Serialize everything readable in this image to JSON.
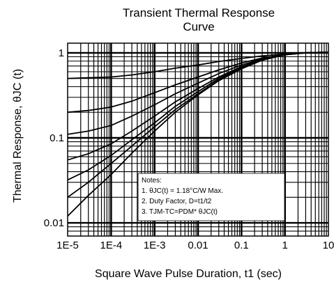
{
  "chart_data": {
    "type": "line",
    "title_line1": "Transient Thermal Response",
    "title_line2": "Curve",
    "ylabel": "Thermal Response, θJC (t)",
    "xlabel": "Square Wave Pulse Duration, t1 (sec)",
    "xscale": "log",
    "yscale": "log",
    "xlim": [
      1e-05,
      10
    ],
    "ylim": [
      0.007,
      1.3
    ],
    "grid": true,
    "x_ticks": [
      {
        "value": 1e-05,
        "label": "1E-5"
      },
      {
        "value": 0.0001,
        "label": "1E-4"
      },
      {
        "value": 0.001,
        "label": "1E-3"
      },
      {
        "value": 0.01,
        "label": "0.01"
      },
      {
        "value": 0.1,
        "label": "0.1"
      },
      {
        "value": 1,
        "label": "1"
      },
      {
        "value": 10,
        "label": "10"
      }
    ],
    "y_ticks": [
      {
        "value": 0.01,
        "label": "0.01"
      },
      {
        "value": 0.1,
        "label": "0.1"
      },
      {
        "value": 1,
        "label": "1"
      }
    ],
    "series": [
      {
        "x": [
          1e-05,
          3e-05,
          0.0001,
          0.0003,
          0.001,
          0.003,
          0.01,
          0.03,
          0.1,
          0.3,
          1,
          3,
          10
        ],
        "y": [
          0.012,
          0.021,
          0.037,
          0.066,
          0.12,
          0.2,
          0.32,
          0.47,
          0.65,
          0.82,
          0.95,
          1.0,
          1.02
        ]
      },
      {
        "x": [
          1e-05,
          3e-05,
          0.0001,
          0.0003,
          0.001,
          0.003,
          0.01,
          0.03,
          0.1,
          0.3,
          1,
          3,
          10
        ],
        "y": [
          0.02,
          0.03,
          0.05,
          0.08,
          0.135,
          0.215,
          0.33,
          0.48,
          0.66,
          0.82,
          0.95,
          1.0,
          1.02
        ]
      },
      {
        "x": [
          1e-05,
          3e-05,
          0.0001,
          0.0003,
          0.001,
          0.003,
          0.01,
          0.03,
          0.1,
          0.3,
          1,
          3,
          10
        ],
        "y": [
          0.032,
          0.042,
          0.062,
          0.095,
          0.15,
          0.235,
          0.35,
          0.5,
          0.67,
          0.83,
          0.95,
          1.0,
          1.02
        ]
      },
      {
        "x": [
          1e-05,
          3e-05,
          0.0001,
          0.0003,
          0.001,
          0.003,
          0.01,
          0.03,
          0.1,
          0.3,
          1,
          3,
          10
        ],
        "y": [
          0.055,
          0.065,
          0.085,
          0.12,
          0.18,
          0.265,
          0.38,
          0.52,
          0.69,
          0.84,
          0.95,
          1.0,
          1.02
        ]
      },
      {
        "x": [
          1e-05,
          3e-05,
          0.0001,
          0.0003,
          0.001,
          0.003,
          0.01,
          0.03,
          0.1,
          0.3,
          1,
          3,
          10
        ],
        "y": [
          0.11,
          0.12,
          0.14,
          0.18,
          0.245,
          0.33,
          0.44,
          0.57,
          0.72,
          0.85,
          0.95,
          1.0,
          1.02
        ]
      },
      {
        "x": [
          1e-05,
          3e-05,
          0.0001,
          0.0003,
          0.001,
          0.003,
          0.01,
          0.03,
          0.1,
          0.3,
          1,
          3,
          10
        ],
        "y": [
          0.2,
          0.21,
          0.23,
          0.27,
          0.34,
          0.42,
          0.52,
          0.63,
          0.76,
          0.87,
          0.96,
          1.0,
          1.02
        ]
      },
      {
        "x": [
          1e-05,
          3e-05,
          0.0001,
          0.0003,
          0.001,
          0.003,
          0.01,
          0.03,
          0.1,
          0.3,
          1,
          3,
          10
        ],
        "y": [
          0.5,
          0.51,
          0.52,
          0.55,
          0.6,
          0.66,
          0.72,
          0.79,
          0.86,
          0.92,
          0.97,
          1.0,
          1.02
        ]
      }
    ],
    "notes": {
      "header": "Notes:",
      "line1": "1.  θJC(t) = 1.18°C/W Max.",
      "line2": "2. Duty Factor, D=t1/t2",
      "line3": "3. TJM-TC=PDM* θJC(t)"
    }
  }
}
